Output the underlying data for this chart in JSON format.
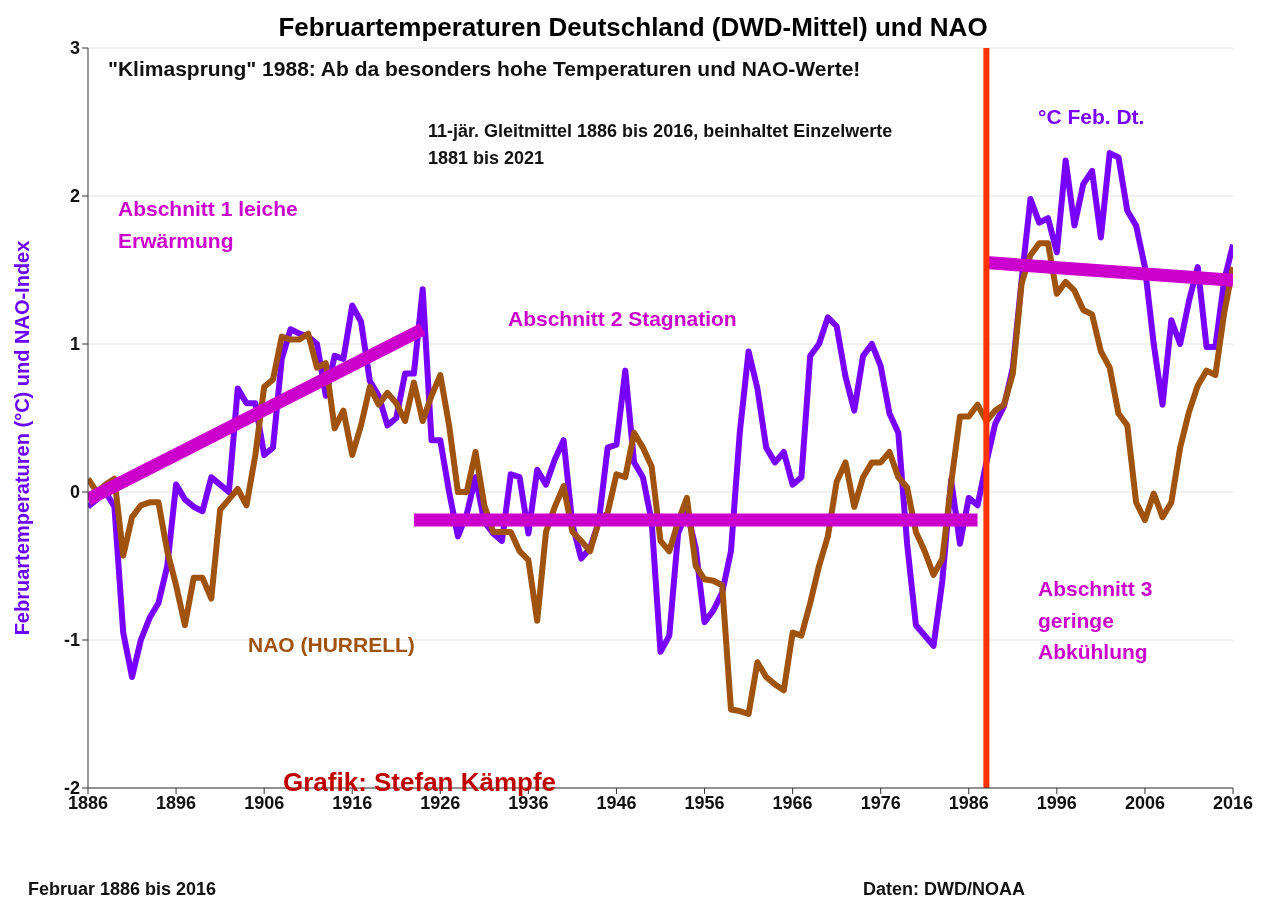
{
  "chart_data": {
    "type": "line",
    "title": "Februartemperaturen Deutschland (DWD-Mittel) und NAO",
    "ylabel": "Februartemperaturen (°C) und NAO-Index",
    "x": [
      1886,
      1887,
      1888,
      1889,
      1890,
      1891,
      1892,
      1893,
      1894,
      1895,
      1896,
      1897,
      1898,
      1899,
      1900,
      1901,
      1902,
      1903,
      1904,
      1905,
      1906,
      1907,
      1908,
      1909,
      1910,
      1911,
      1912,
      1913,
      1914,
      1915,
      1916,
      1917,
      1918,
      1919,
      1920,
      1921,
      1922,
      1923,
      1924,
      1925,
      1926,
      1927,
      1928,
      1929,
      1930,
      1931,
      1932,
      1933,
      1934,
      1935,
      1936,
      1937,
      1938,
      1939,
      1940,
      1941,
      1942,
      1943,
      1944,
      1945,
      1946,
      1947,
      1948,
      1949,
      1950,
      1951,
      1952,
      1953,
      1954,
      1955,
      1956,
      1957,
      1958,
      1959,
      1960,
      1961,
      1962,
      1963,
      1964,
      1965,
      1966,
      1967,
      1968,
      1969,
      1970,
      1971,
      1972,
      1973,
      1974,
      1975,
      1976,
      1977,
      1978,
      1979,
      1980,
      1981,
      1982,
      1983,
      1984,
      1985,
      1986,
      1987,
      1988,
      1989,
      1990,
      1991,
      1992,
      1993,
      1994,
      1995,
      1996,
      1997,
      1998,
      1999,
      2000,
      2001,
      2002,
      2003,
      2004,
      2005,
      2006,
      2007,
      2008,
      2009,
      2010,
      2011,
      2012,
      2013,
      2014,
      2015,
      2016
    ],
    "series": [
      {
        "name": "°C Feb. Dt.",
        "color": "#7700ff",
        "values": [
          -0.1,
          -0.05,
          0.0,
          -0.1,
          -0.95,
          -1.25,
          -1.0,
          -0.85,
          -0.75,
          -0.5,
          0.05,
          -0.05,
          -0.1,
          -0.13,
          0.1,
          0.05,
          0.0,
          0.7,
          0.6,
          0.6,
          0.25,
          0.3,
          0.9,
          1.1,
          1.07,
          1.05,
          1.0,
          0.65,
          0.92,
          0.9,
          1.26,
          1.15,
          0.75,
          0.65,
          0.45,
          0.5,
          0.8,
          0.8,
          1.37,
          0.35,
          0.35,
          0.0,
          -0.3,
          -0.15,
          0.1,
          -0.2,
          -0.28,
          -0.33,
          0.12,
          0.1,
          -0.28,
          0.15,
          0.05,
          0.22,
          0.35,
          -0.22,
          -0.45,
          -0.38,
          -0.2,
          0.3,
          0.32,
          0.82,
          0.2,
          0.1,
          -0.2,
          -1.08,
          -0.97,
          -0.28,
          -0.13,
          -0.38,
          -0.88,
          -0.8,
          -0.68,
          -0.4,
          0.4,
          0.95,
          0.7,
          0.3,
          0.2,
          0.27,
          0.05,
          0.1,
          0.92,
          1.0,
          1.18,
          1.12,
          0.78,
          0.55,
          0.92,
          1.0,
          0.85,
          0.53,
          0.4,
          -0.35,
          -0.9,
          -0.97,
          -1.04,
          -0.6,
          0.08,
          -0.35,
          -0.04,
          -0.09,
          0.2,
          0.46,
          0.58,
          0.84,
          1.43,
          1.98,
          1.82,
          1.85,
          1.62,
          2.24,
          1.8,
          2.08,
          2.17,
          1.72,
          2.29,
          2.26,
          1.9,
          1.8,
          1.52,
          1.0,
          0.59,
          1.16,
          1.0,
          1.29,
          1.52,
          0.98,
          0.98,
          1.43,
          1.67
        ]
      },
      {
        "name": "NAO (HURRELL)",
        "color": "#a0520f",
        "values": [
          0.09,
          0.0,
          0.05,
          0.09,
          -0.43,
          -0.17,
          -0.09,
          -0.07,
          -0.07,
          -0.4,
          -0.63,
          -0.9,
          -0.58,
          -0.58,
          -0.72,
          -0.12,
          -0.05,
          0.02,
          -0.09,
          0.25,
          0.71,
          0.76,
          1.05,
          1.03,
          1.03,
          1.07,
          0.84,
          0.87,
          0.43,
          0.55,
          0.25,
          0.45,
          0.71,
          0.59,
          0.67,
          0.6,
          0.48,
          0.74,
          0.48,
          0.65,
          0.79,
          0.45,
          0.0,
          0.0,
          0.27,
          -0.09,
          -0.27,
          -0.27,
          -0.27,
          -0.4,
          -0.46,
          -0.87,
          -0.27,
          -0.1,
          0.04,
          -0.27,
          -0.33,
          -0.4,
          -0.2,
          -0.14,
          0.12,
          0.1,
          0.4,
          0.3,
          0.17,
          -0.33,
          -0.4,
          -0.2,
          -0.04,
          -0.5,
          -0.59,
          -0.6,
          -0.63,
          -1.47,
          -1.48,
          -1.5,
          -1.15,
          -1.25,
          -1.3,
          -1.34,
          -0.95,
          -0.97,
          -0.75,
          -0.5,
          -0.3,
          0.07,
          0.2,
          -0.1,
          0.1,
          0.2,
          0.2,
          0.27,
          0.1,
          0.03,
          -0.27,
          -0.4,
          -0.56,
          -0.45,
          0.06,
          0.51,
          0.51,
          0.59,
          0.48,
          0.55,
          0.59,
          0.8,
          1.41,
          1.6,
          1.68,
          1.68,
          1.34,
          1.42,
          1.36,
          1.23,
          1.2,
          0.95,
          0.84,
          0.53,
          0.45,
          -0.07,
          -0.19,
          -0.01,
          -0.17,
          -0.07,
          0.3,
          0.54,
          0.72,
          0.82,
          0.79,
          1.21,
          1.52
        ]
      },
      {
        "type": "line",
        "color": "#cc00cc",
        "x": [
          1886,
          1924
        ],
        "values": [
          -0.05,
          1.1
        ]
      },
      {
        "type": "line",
        "color": "#cc00cc",
        "x": [
          1923,
          1987
        ],
        "values": [
          -0.19,
          -0.19
        ]
      },
      {
        "type": "line",
        "color": "#cc00cc",
        "x": [
          1988,
          2016
        ],
        "values": [
          1.55,
          1.43
        ]
      }
    ],
    "xlim": [
      1886,
      2016
    ],
    "xticks": [
      1886,
      1896,
      1906,
      1916,
      1926,
      1936,
      1946,
      1956,
      1966,
      1976,
      1986,
      1996,
      2006,
      2016
    ],
    "ylim": [
      -2,
      3
    ],
    "yticks": [
      -2,
      -1,
      0,
      1,
      2,
      3
    ],
    "grid": "y",
    "marker": "none",
    "legend": false,
    "ref_lines": [
      {
        "axis": "x",
        "value": 1988,
        "color": "#ff3300"
      }
    ],
    "annotations": [
      "\"Klimasprung\" 1988: Ab da besonders hohe Temperaturen und NAO-Werte!",
      "11-jär. Gleitmittel 1886 bis 2016, beinhaltet Einzelwerte 1881 bis 2021",
      "Abschnitt 1 leiche Erwärmung",
      "Abschnitt 2 Stagnation",
      "Abschnitt 3 geringe Abkühlung",
      "Grafik: Stefan Kämpfe",
      "Februar 1886 bis 2016",
      "Daten: DWD/NOAA"
    ]
  }
}
